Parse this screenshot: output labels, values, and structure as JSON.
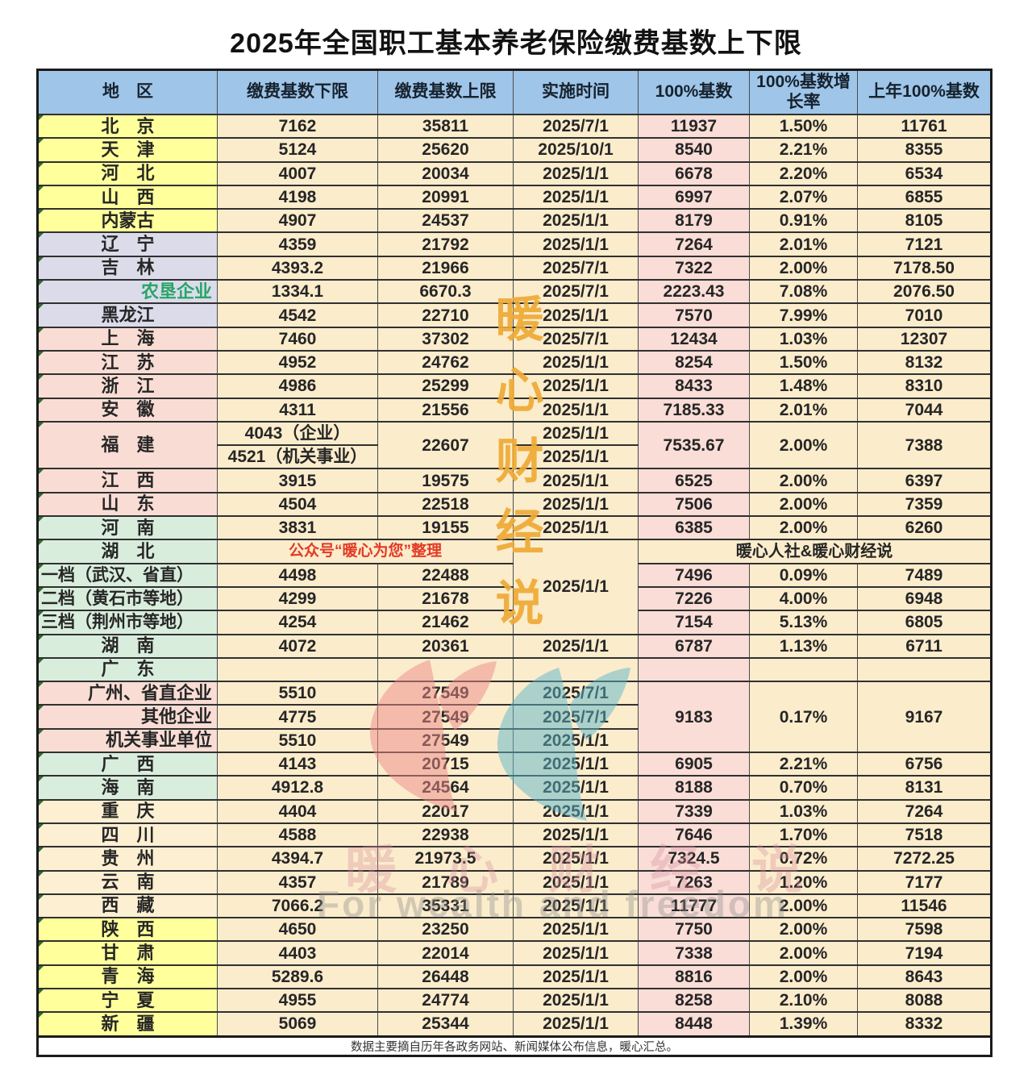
{
  "title": "2025年全国职工基本养老保险缴费基数上下限",
  "footer": "数据主要摘自历年各政务网站、新闻媒体公布信息，暖心汇总。",
  "watermarks": {
    "vertical": "暖心财经说",
    "faint": "暖心财经说",
    "english": "For wealth and freedom",
    "gold": "#EFAA35",
    "logo_pink": "#EE8B8B",
    "logo_teal": "#5CB6C9"
  },
  "colors": {
    "header_bg": "#9FC5E8",
    "yellow_region": "#FFFF9B",
    "lavender_region": "#DBDBEA",
    "pink_region": "#F9DDD5",
    "green_region": "#D9EDDC",
    "cream_region": "#FCEFD2",
    "cell_bg": "#FBECCC",
    "base100_col_bg": "#F9DDD6",
    "red_text": "#E33A24",
    "green_text": "#27A567"
  },
  "table": {
    "header": {
      "region": "地　区",
      "lower": "缴费基数下限",
      "upper": "缴费基数上限",
      "date": "实施时间",
      "base100": "100%基数",
      "growth": "100%基数增长率",
      "prev": "上年100%基数"
    },
    "rows": [
      {
        "cells": [
          {
            "t": "北　京",
            "cls": "region bg-y"
          },
          {
            "t": "7162"
          },
          {
            "t": "35811"
          },
          {
            "t": "2025/7/1"
          },
          {
            "t": "11937"
          },
          {
            "t": "1.50%"
          },
          {
            "t": "11761"
          }
        ]
      },
      {
        "cells": [
          {
            "t": "天　津",
            "cls": "region bg-y"
          },
          {
            "t": "5124"
          },
          {
            "t": "25620"
          },
          {
            "t": "2025/10/1"
          },
          {
            "t": "8540"
          },
          {
            "t": "2.21%"
          },
          {
            "t": "8355"
          }
        ]
      },
      {
        "cells": [
          {
            "t": "河　北",
            "cls": "region bg-y"
          },
          {
            "t": "4007"
          },
          {
            "t": "20034"
          },
          {
            "t": "2025/1/1"
          },
          {
            "t": "6678"
          },
          {
            "t": "2.20%"
          },
          {
            "t": "6534"
          }
        ]
      },
      {
        "cells": [
          {
            "t": "山　西",
            "cls": "region bg-y"
          },
          {
            "t": "4198"
          },
          {
            "t": "20991"
          },
          {
            "t": "2025/1/1"
          },
          {
            "t": "6997"
          },
          {
            "t": "2.07%"
          },
          {
            "t": "6855"
          }
        ]
      },
      {
        "cells": [
          {
            "t": "内蒙古",
            "cls": "region bg-y"
          },
          {
            "t": "4907"
          },
          {
            "t": "24537"
          },
          {
            "t": "2025/1/1"
          },
          {
            "t": "8179"
          },
          {
            "t": "0.91%"
          },
          {
            "t": "8105"
          }
        ]
      },
      {
        "cells": [
          {
            "t": "辽　宁",
            "cls": "region bg-l"
          },
          {
            "t": "4359"
          },
          {
            "t": "21792"
          },
          {
            "t": "2025/1/1"
          },
          {
            "t": "7264"
          },
          {
            "t": "2.01%"
          },
          {
            "t": "7121"
          }
        ]
      },
      {
        "cells": [
          {
            "t": "吉　林",
            "cls": "region bg-l"
          },
          {
            "t": "4393.2"
          },
          {
            "t": "21966"
          },
          {
            "t": "2025/7/1"
          },
          {
            "t": "7322"
          },
          {
            "t": "2.00%"
          },
          {
            "t": "7178.50"
          }
        ]
      },
      {
        "cells": [
          {
            "t": "农垦企业",
            "cls": "region bg-l grn rgt"
          },
          {
            "t": "1334.1"
          },
          {
            "t": "6670.3"
          },
          {
            "t": "2025/7/1"
          },
          {
            "t": "2223.43"
          },
          {
            "t": "7.08%"
          },
          {
            "t": "2076.50"
          }
        ]
      },
      {
        "cells": [
          {
            "t": "黑龙江",
            "cls": "region bg-l"
          },
          {
            "t": "4542"
          },
          {
            "t": "22710"
          },
          {
            "t": "2025/1/1"
          },
          {
            "t": "7570"
          },
          {
            "t": "7.99%"
          },
          {
            "t": "7010"
          }
        ]
      },
      {
        "cells": [
          {
            "t": "上　海",
            "cls": "region bg-p"
          },
          {
            "t": "7460"
          },
          {
            "t": "37302"
          },
          {
            "t": "2025/7/1"
          },
          {
            "t": "12434"
          },
          {
            "t": "1.03%"
          },
          {
            "t": "12307"
          }
        ]
      },
      {
        "cells": [
          {
            "t": "江　苏",
            "cls": "region bg-p"
          },
          {
            "t": "4952"
          },
          {
            "t": "24762"
          },
          {
            "t": "2025/1/1"
          },
          {
            "t": "8254"
          },
          {
            "t": "1.50%"
          },
          {
            "t": "8132"
          }
        ]
      },
      {
        "cells": [
          {
            "t": "浙　江",
            "cls": "region bg-p"
          },
          {
            "t": "4986"
          },
          {
            "t": "25299"
          },
          {
            "t": "2025/1/1"
          },
          {
            "t": "8433"
          },
          {
            "t": "1.48%"
          },
          {
            "t": "8310"
          }
        ]
      },
      {
        "cells": [
          {
            "t": "安　徽",
            "cls": "region bg-p"
          },
          {
            "t": "4311"
          },
          {
            "t": "21556"
          },
          {
            "t": "2025/1/1"
          },
          {
            "t": "7185.33"
          },
          {
            "t": "2.01%"
          },
          {
            "t": "7044"
          }
        ]
      },
      {
        "cells": [
          {
            "t": "福　建",
            "cls": "region bg-p",
            "rs": 2
          },
          {
            "t": "4043（企业）"
          },
          {
            "t": "22607",
            "rs": 2
          },
          {
            "t": "2025/1/1"
          },
          {
            "t": "7535.67",
            "rs": 2
          },
          {
            "t": "2.00%",
            "rs": 2
          },
          {
            "t": "7388",
            "rs": 2
          }
        ]
      },
      {
        "cells": [
          {
            "t": "4521（机关事业）"
          },
          {
            "t": "2025/1/1"
          }
        ]
      },
      {
        "cells": [
          {
            "t": "江　西",
            "cls": "region bg-p"
          },
          {
            "t": "3915"
          },
          {
            "t": "19575"
          },
          {
            "t": "2025/1/1"
          },
          {
            "t": "6525"
          },
          {
            "t": "2.00%"
          },
          {
            "t": "6397"
          }
        ]
      },
      {
        "cells": [
          {
            "t": "山　东",
            "cls": "region bg-p"
          },
          {
            "t": "4504"
          },
          {
            "t": "22518"
          },
          {
            "t": "2025/1/1"
          },
          {
            "t": "7506"
          },
          {
            "t": "2.00%"
          },
          {
            "t": "7359"
          }
        ]
      },
      {
        "cells": [
          {
            "t": "河　南",
            "cls": "region bg-g"
          },
          {
            "t": "3831"
          },
          {
            "t": "19155"
          },
          {
            "t": "2025/1/1"
          },
          {
            "t": "6385"
          },
          {
            "t": "2.00%"
          },
          {
            "t": "6260"
          }
        ]
      },
      {
        "cells": [
          {
            "t": "湖　北",
            "cls": "region bg-g"
          },
          {
            "t": "公众号“暖心为您”整理",
            "cs": 2,
            "cls": "red"
          },
          {
            "t": "2025/1/1",
            "rs": 4
          },
          {
            "t": "暖心人社&暖心财经说",
            "cs": 3,
            "cls": "note"
          }
        ]
      },
      {
        "cells": [
          {
            "t": "一档（武汉、省直）",
            "cls": "region bg-g lft"
          },
          {
            "t": "4498"
          },
          {
            "t": "22488"
          },
          {
            "t": "7496"
          },
          {
            "t": "0.09%"
          },
          {
            "t": "7489"
          }
        ]
      },
      {
        "cells": [
          {
            "t": "二档（黄石市等地）",
            "cls": "region bg-g lft"
          },
          {
            "t": "4299"
          },
          {
            "t": "21678"
          },
          {
            "t": "7226"
          },
          {
            "t": "4.00%"
          },
          {
            "t": "6948"
          }
        ]
      },
      {
        "cells": [
          {
            "t": "三档（荆州市等地）",
            "cls": "region bg-g lft"
          },
          {
            "t": "4254"
          },
          {
            "t": "21462"
          },
          {
            "t": "7154"
          },
          {
            "t": "5.13%"
          },
          {
            "t": "6805"
          }
        ]
      },
      {
        "cells": [
          {
            "t": "湖　南",
            "cls": "region bg-g"
          },
          {
            "t": "4072"
          },
          {
            "t": "20361"
          },
          {
            "t": "2025/1/1"
          },
          {
            "t": "6787"
          },
          {
            "t": "1.13%"
          },
          {
            "t": "6711"
          }
        ]
      },
      {
        "cells": [
          {
            "t": "广　东",
            "cls": "region bg-g"
          },
          {
            "t": ""
          },
          {
            "t": ""
          },
          {
            "t": ""
          },
          {
            "t": ""
          },
          {
            "t": ""
          },
          {
            "t": ""
          }
        ]
      },
      {
        "cells": [
          {
            "t": "广州、省直企业",
            "cls": "region bg-p rgt"
          },
          {
            "t": "5510"
          },
          {
            "t": "27549"
          },
          {
            "t": "2025/7/1"
          },
          {
            "t": "9183",
            "rs": 3
          },
          {
            "t": "0.17%",
            "rs": 3
          },
          {
            "t": "9167",
            "rs": 3
          }
        ]
      },
      {
        "cells": [
          {
            "t": "其他企业",
            "cls": "region bg-p rgt"
          },
          {
            "t": "4775"
          },
          {
            "t": "27549"
          },
          {
            "t": "2025/7/1"
          }
        ]
      },
      {
        "cells": [
          {
            "t": "机关事业单位",
            "cls": "region bg-p rgt"
          },
          {
            "t": "5510"
          },
          {
            "t": "27549"
          },
          {
            "t": "2025/1/1"
          }
        ]
      },
      {
        "cells": [
          {
            "t": "广　西",
            "cls": "region bg-g"
          },
          {
            "t": "4143"
          },
          {
            "t": "20715"
          },
          {
            "t": "2025/1/1"
          },
          {
            "t": "6905"
          },
          {
            "t": "2.21%"
          },
          {
            "t": "6756"
          }
        ]
      },
      {
        "cells": [
          {
            "t": "海　南",
            "cls": "region bg-g"
          },
          {
            "t": "4912.8"
          },
          {
            "t": "24564"
          },
          {
            "t": "2025/1/1"
          },
          {
            "t": "8188"
          },
          {
            "t": "0.70%"
          },
          {
            "t": "8131"
          }
        ]
      },
      {
        "cells": [
          {
            "t": "重　庆",
            "cls": "region bg-c"
          },
          {
            "t": "4404"
          },
          {
            "t": "22017"
          },
          {
            "t": "2025/1/1"
          },
          {
            "t": "7339"
          },
          {
            "t": "1.03%"
          },
          {
            "t": "7264"
          }
        ]
      },
      {
        "cells": [
          {
            "t": "四　川",
            "cls": "region bg-c"
          },
          {
            "t": "4588"
          },
          {
            "t": "22938"
          },
          {
            "t": "2025/1/1"
          },
          {
            "t": "7646"
          },
          {
            "t": "1.70%"
          },
          {
            "t": "7518"
          }
        ]
      },
      {
        "cells": [
          {
            "t": "贵　州",
            "cls": "region bg-c"
          },
          {
            "t": "4394.7"
          },
          {
            "t": "21973.5"
          },
          {
            "t": "2025/1/1"
          },
          {
            "t": "7324.5"
          },
          {
            "t": "0.72%"
          },
          {
            "t": "7272.25"
          }
        ]
      },
      {
        "cells": [
          {
            "t": "云　南",
            "cls": "region bg-c"
          },
          {
            "t": "4357"
          },
          {
            "t": "21789"
          },
          {
            "t": "2025/1/1"
          },
          {
            "t": "7263"
          },
          {
            "t": "1.20%"
          },
          {
            "t": "7177"
          }
        ]
      },
      {
        "cells": [
          {
            "t": "西　藏",
            "cls": "region bg-c"
          },
          {
            "t": "7066.2"
          },
          {
            "t": "35331"
          },
          {
            "t": "2025/1/1"
          },
          {
            "t": "11777"
          },
          {
            "t": "2.00%"
          },
          {
            "t": "11546"
          }
        ]
      },
      {
        "cells": [
          {
            "t": "陕　西",
            "cls": "region bg-y"
          },
          {
            "t": "4650"
          },
          {
            "t": "23250"
          },
          {
            "t": "2025/1/1"
          },
          {
            "t": "7750"
          },
          {
            "t": "2.00%"
          },
          {
            "t": "7598"
          }
        ]
      },
      {
        "cells": [
          {
            "t": "甘　肃",
            "cls": "region bg-y"
          },
          {
            "t": "4403"
          },
          {
            "t": "22014"
          },
          {
            "t": "2025/1/1"
          },
          {
            "t": "7338"
          },
          {
            "t": "2.00%"
          },
          {
            "t": "7194"
          }
        ]
      },
      {
        "cells": [
          {
            "t": "青　海",
            "cls": "region bg-y"
          },
          {
            "t": "5289.6"
          },
          {
            "t": "26448"
          },
          {
            "t": "2025/1/1"
          },
          {
            "t": "8816"
          },
          {
            "t": "2.00%"
          },
          {
            "t": "8643"
          }
        ]
      },
      {
        "cells": [
          {
            "t": "宁　夏",
            "cls": "region bg-y"
          },
          {
            "t": "4955"
          },
          {
            "t": "24774"
          },
          {
            "t": "2025/1/1"
          },
          {
            "t": "8258"
          },
          {
            "t": "2.10%"
          },
          {
            "t": "8088"
          }
        ]
      },
      {
        "cells": [
          {
            "t": "新　疆",
            "cls": "region bg-y"
          },
          {
            "t": "5069"
          },
          {
            "t": "25344"
          },
          {
            "t": "2025/1/1"
          },
          {
            "t": "8448"
          },
          {
            "t": "1.39%"
          },
          {
            "t": "8332"
          }
        ]
      }
    ]
  }
}
